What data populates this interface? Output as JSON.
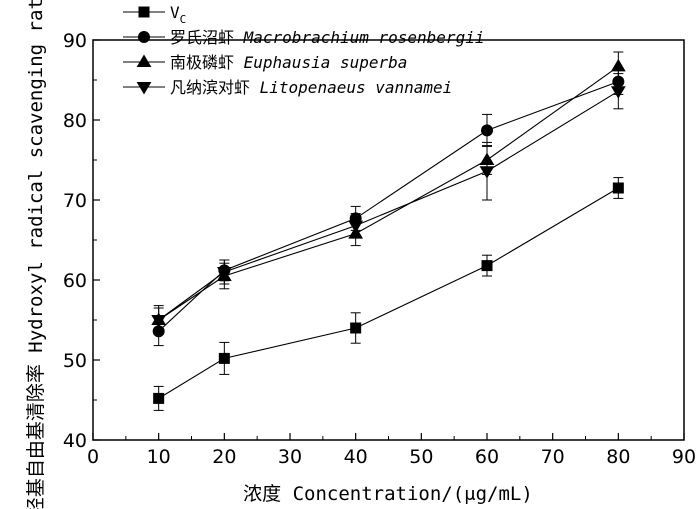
{
  "chart_data": {
    "type": "line",
    "xlabel": "浓度 Concentration/(μg/mL)",
    "ylabel": "羟基自由基清除率 Hydroxyl radical scavenging rate/%",
    "xlim": [
      0,
      90
    ],
    "ylim": [
      40,
      90
    ],
    "xticks": [
      0,
      10,
      20,
      30,
      40,
      50,
      60,
      70,
      80,
      90
    ],
    "yticks": [
      40,
      50,
      60,
      70,
      80,
      90
    ],
    "x": [
      10,
      20,
      40,
      60,
      80
    ],
    "legend_position": "top-left",
    "grid": false,
    "series": [
      {
        "name": "VC",
        "name_main": "V",
        "name_sub": "C",
        "marker": "square",
        "values": [
          45.2,
          50.2,
          54.0,
          61.8,
          71.5
        ],
        "errors": [
          1.5,
          2.0,
          1.9,
          1.3,
          1.3
        ]
      },
      {
        "name": "罗氏沼虾 Macrobrachium rosenbergii",
        "name_cn": "罗氏沼虾",
        "name_latin": "Macrobrachium rosenbergii",
        "marker": "circle",
        "values": [
          53.6,
          61.2,
          67.7,
          78.7,
          84.8
        ],
        "errors": [
          1.8,
          1.3,
          1.5,
          2.0,
          1.6
        ]
      },
      {
        "name": "南极磷虾 Euphausia superba",
        "name_cn": "南极磷虾",
        "name_latin": "Euphausia superba",
        "marker": "triangle-up",
        "values": [
          55.0,
          60.5,
          65.8,
          75.0,
          86.7
        ],
        "errors": [
          1.8,
          1.6,
          1.5,
          1.8,
          1.8
        ]
      },
      {
        "name": "凡纳滨对虾 Litopenaeus vannamei",
        "name_cn": "凡纳滨对虾",
        "name_latin": "Litopenaeus vannamei",
        "marker": "triangle-down",
        "values": [
          55.0,
          61.0,
          66.8,
          73.6,
          83.6
        ],
        "errors": [
          1.5,
          1.5,
          1.5,
          3.6,
          2.2
        ]
      }
    ]
  }
}
